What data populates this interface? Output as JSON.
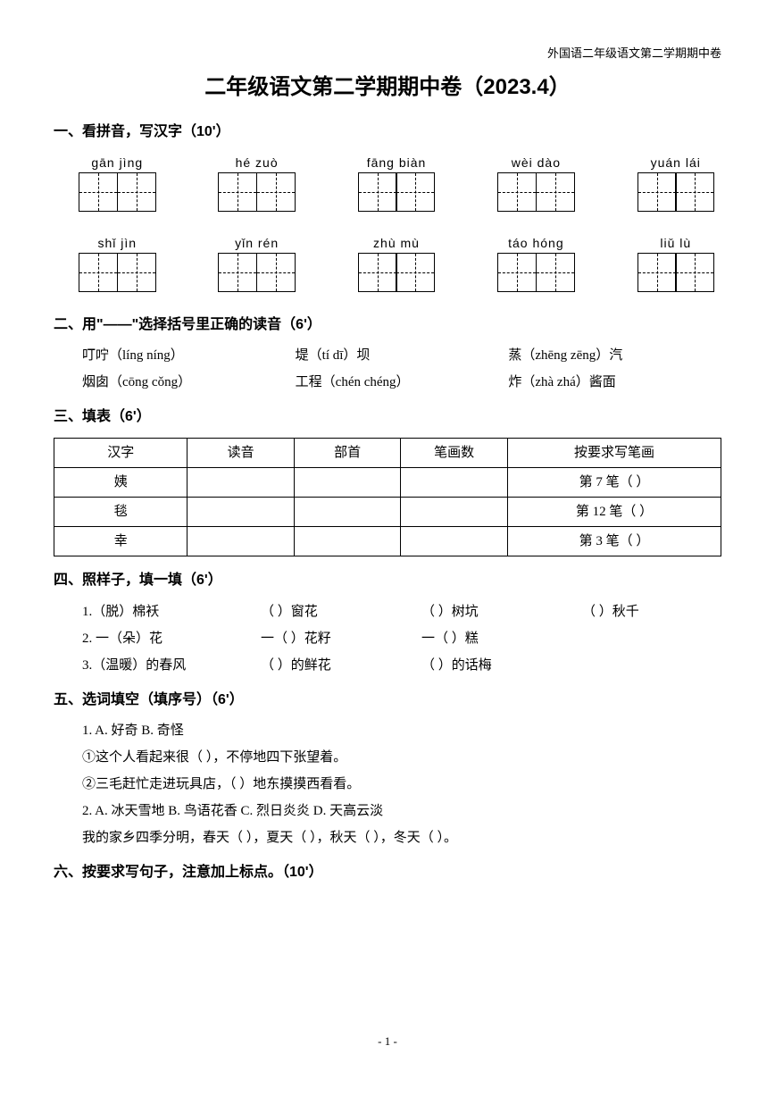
{
  "header_right": "外国语二年级语文第二学期期中卷",
  "title": "二年级语文第二学期期中卷（2023.4）",
  "page_number": "- 1 -",
  "q1": {
    "head": "一、看拼音，写汉字（10'）",
    "row1": [
      "gān jìng",
      "hé  zuò",
      "fāng  biàn",
      "wèi  dào",
      "yuán  lái"
    ],
    "row2": [
      "shǐ jìn",
      "yǐn  rén",
      "zhù   mù",
      "táo  hóng",
      "liǔ  lù"
    ]
  },
  "q2": {
    "head": "二、用\"——\"选择括号里正确的读音（6'）",
    "r1c1": "叮咛（líng   níng）",
    "r1c2": "堤（tí   dī）坝",
    "r1c3": "蒸（zhēng   zēng）汽",
    "r2c1": "烟囱（cōng   cǒng）",
    "r2c2": "工程（chén   chéng）",
    "r2c3": "炸（zhà   zhá）酱面"
  },
  "q3": {
    "head": "三、填表（6'）",
    "headers": [
      "汉字",
      "读音",
      "部首",
      "笔画数",
      "按要求写笔画"
    ],
    "rows": [
      [
        "姨",
        "",
        "",
        "",
        "第 7 笔（    ）"
      ],
      [
        "毯",
        "",
        "",
        "",
        "第 12 笔（    ）"
      ],
      [
        "幸",
        "",
        "",
        "",
        "第 3 笔（    ）"
      ]
    ]
  },
  "q4": {
    "head": "四、照样子，填一填（6'）",
    "r1": [
      "1.（脱）棉袄",
      "（        ）窗花",
      "（        ）树坑",
      "（        ）秋千"
    ],
    "r2": [
      "2. 一（朵）花",
      "一（        ）花籽",
      "一（        ）糕",
      ""
    ],
    "r3": [
      "3.（温暖）的春风",
      "（          ）的鲜花",
      "（          ）的话梅",
      ""
    ]
  },
  "q5": {
    "head": "五、选词填空（填序号）（6'）",
    "line1": "1. A. 好奇            B. 奇怪",
    "s1": "①这个人看起来很（        ），不停地四下张望着。",
    "s2": "②三毛赶忙走进玩具店，（        ）地东摸摸西看看。",
    "line2": "2. A. 冰天雪地      B. 鸟语花香      C. 烈日炎炎      D. 天高云淡",
    "s3": "我的家乡四季分明，春天（        ），夏天（        ），秋天（        ），冬天（        ）。"
  },
  "q6": {
    "head": "六、按要求写句子，注意加上标点。（10'）"
  }
}
